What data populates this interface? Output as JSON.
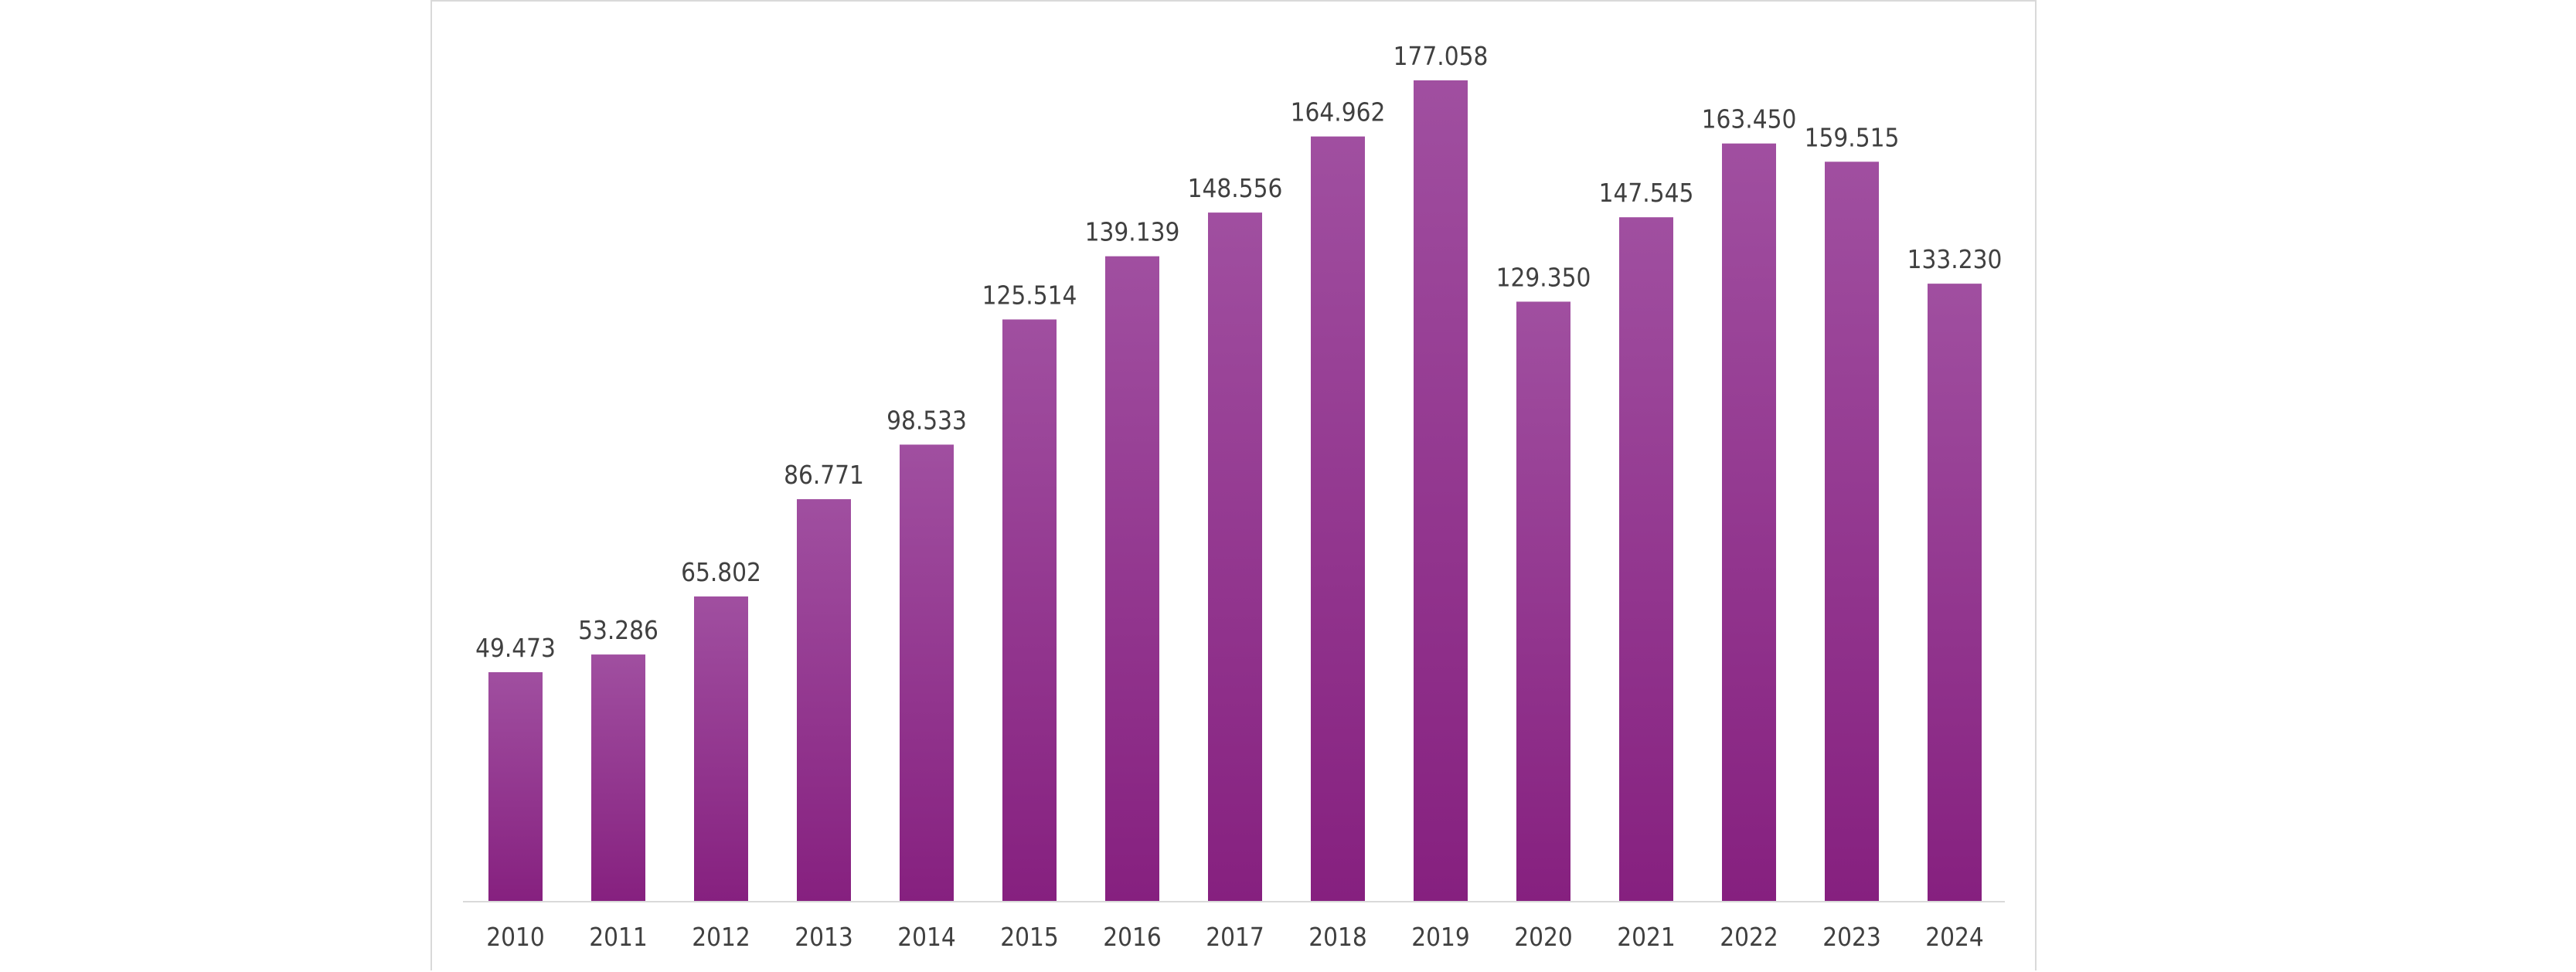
{
  "chart_data": {
    "type": "bar",
    "title": "",
    "xlabel": "",
    "ylabel": "",
    "categories": [
      "2010",
      "2011",
      "2012",
      "2013",
      "2014",
      "2015",
      "2016",
      "2017",
      "2018",
      "2019",
      "2020",
      "2021",
      "2022",
      "2023",
      "2024"
    ],
    "values": [
      49473,
      53286,
      65802,
      86771,
      98533,
      125514,
      139139,
      148556,
      164962,
      177058,
      129350,
      147545,
      163450,
      159515,
      133230
    ],
    "value_labels": [
      "49.473",
      "53.286",
      "65.802",
      "86.771",
      "98.533",
      "125.514",
      "139.139",
      "148.556",
      "164.962",
      "177.058",
      "129.350",
      "147.545",
      "163.450",
      "159.515",
      "133.230"
    ],
    "ylim": [
      0,
      200000
    ],
    "grid": false,
    "legend": "none",
    "bar_color_top": "#a04fa0",
    "bar_color_bottom": "#86207f"
  }
}
